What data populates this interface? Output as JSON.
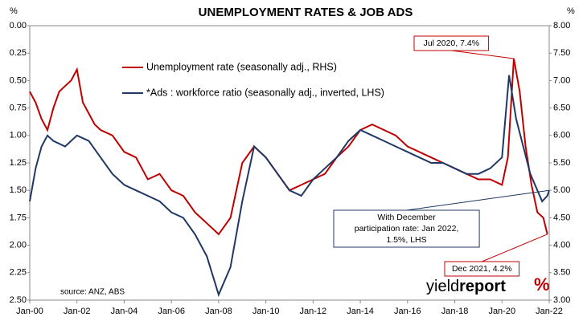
{
  "chart_data": {
    "type": "line",
    "title": "UNEMPLOYMENT RATES & JOB ADS",
    "y_unit": "%",
    "y2_unit": "%",
    "source": "source: ANZ, ABS",
    "logo": {
      "main": "yield",
      "bold": "report"
    },
    "legend": "top-center",
    "yinvert": true,
    "xlim": [
      2000,
      2022
    ],
    "xticks": [
      {
        "value": 2000,
        "label": "Jan-00"
      },
      {
        "value": 2002,
        "label": "Jan-02"
      },
      {
        "value": 2004,
        "label": "Jan-04"
      },
      {
        "value": 2006,
        "label": "Jan-06"
      },
      {
        "value": 2008,
        "label": "Jan-08"
      },
      {
        "value": 2010,
        "label": "Jan-10"
      },
      {
        "value": 2012,
        "label": "Jan-12"
      },
      {
        "value": 2014,
        "label": "Jan-14"
      },
      {
        "value": 2016,
        "label": "Jan-16"
      },
      {
        "value": 2018,
        "label": "Jan-18"
      },
      {
        "value": 2020,
        "label": "Jan-20"
      },
      {
        "value": 2022,
        "label": "Jan-22"
      }
    ],
    "ylim": [
      0,
      2.5
    ],
    "yticks": [
      {
        "value": 0,
        "label": "0.00"
      },
      {
        "value": 0.25,
        "label": "0.25"
      },
      {
        "value": 0.5,
        "label": "0.50"
      },
      {
        "value": 0.75,
        "label": "0.75"
      },
      {
        "value": 1,
        "label": "1.00"
      },
      {
        "value": 1.25,
        "label": "1.25"
      },
      {
        "value": 1.5,
        "label": "1.50"
      },
      {
        "value": 1.75,
        "label": "1.75"
      },
      {
        "value": 2,
        "label": "2.00"
      },
      {
        "value": 2.25,
        "label": "2.25"
      },
      {
        "value": 2.5,
        "label": "2.50"
      }
    ],
    "y2lim": [
      3,
      8
    ],
    "y2ticks": [
      {
        "value": 3,
        "label": "3.00"
      },
      {
        "value": 3.5,
        "label": "3.50"
      },
      {
        "value": 4,
        "label": "4.00"
      },
      {
        "value": 4.5,
        "label": "4.50"
      },
      {
        "value": 5,
        "label": "5.00"
      },
      {
        "value": 5.5,
        "label": "5.50"
      },
      {
        "value": 6,
        "label": "6.00"
      },
      {
        "value": 6.5,
        "label": "6.50"
      },
      {
        "value": 7,
        "label": "7.00"
      },
      {
        "value": 7.5,
        "label": "7.50"
      },
      {
        "value": 8,
        "label": "8.00"
      }
    ],
    "series": [
      {
        "name": "Unemployment rate (seasonally adj., RHS)",
        "color": "#c00000",
        "axis": "y2",
        "x": [
          2000,
          2000.25,
          2000.5,
          2000.75,
          2001,
          2001.25,
          2001.5,
          2001.75,
          2002,
          2002.25,
          2002.5,
          2002.75,
          2003,
          2003.5,
          2004,
          2004.5,
          2005,
          2005.5,
          2006,
          2006.5,
          2007,
          2007.5,
          2008,
          2008.5,
          2009,
          2009.5,
          2010,
          2010.5,
          2011,
          2011.5,
          2012,
          2012.5,
          2013,
          2013.5,
          2014,
          2014.5,
          2015,
          2015.5,
          2016,
          2016.5,
          2017,
          2017.5,
          2018,
          2018.5,
          2019,
          2019.5,
          2020,
          2020.25,
          2020.5,
          2020.75,
          2021,
          2021.25,
          2021.5,
          2021.75,
          2021.92
        ],
        "values": [
          6.8,
          6.6,
          6.3,
          6.1,
          6.5,
          6.8,
          6.9,
          7.0,
          7.2,
          6.6,
          6.4,
          6.2,
          6.1,
          6.0,
          5.7,
          5.6,
          5.2,
          5.3,
          5.0,
          4.9,
          4.6,
          4.4,
          4.2,
          4.5,
          5.5,
          5.8,
          5.6,
          5.3,
          5.0,
          5.1,
          5.2,
          5.3,
          5.6,
          5.8,
          6.1,
          6.2,
          6.1,
          6.0,
          5.8,
          5.7,
          5.6,
          5.5,
          5.4,
          5.3,
          5.2,
          5.2,
          5.1,
          5.6,
          7.4,
          6.8,
          5.8,
          5.1,
          4.6,
          4.5,
          4.2
        ]
      },
      {
        "name": "*Ads : workforce ratio (seasonally adj., inverted, LHS)",
        "color": "#1f3864",
        "axis": "y",
        "x": [
          2000,
          2000.25,
          2000.5,
          2000.75,
          2001,
          2001.5,
          2002,
          2002.5,
          2003,
          2003.5,
          2004,
          2004.5,
          2005,
          2005.5,
          2006,
          2006.5,
          2007,
          2007.5,
          2008,
          2008.5,
          2009,
          2009.5,
          2010,
          2010.5,
          2011,
          2011.5,
          2012,
          2012.5,
          2013,
          2013.5,
          2014,
          2014.5,
          2015,
          2015.5,
          2016,
          2016.5,
          2017,
          2017.5,
          2018,
          2018.5,
          2019,
          2019.5,
          2020,
          2020.3,
          2020.6,
          2020.9,
          2021.2,
          2021.5,
          2021.7,
          2021.92,
          2022
        ],
        "values": [
          1.6,
          1.3,
          1.1,
          1.0,
          1.05,
          1.1,
          1.0,
          1.05,
          1.2,
          1.35,
          1.45,
          1.5,
          1.55,
          1.6,
          1.7,
          1.75,
          1.9,
          2.1,
          2.45,
          2.2,
          1.6,
          1.1,
          1.2,
          1.35,
          1.5,
          1.55,
          1.4,
          1.3,
          1.2,
          1.05,
          0.95,
          1.0,
          1.05,
          1.1,
          1.15,
          1.2,
          1.25,
          1.25,
          1.3,
          1.35,
          1.35,
          1.3,
          1.2,
          0.45,
          0.85,
          1.1,
          1.35,
          1.5,
          1.6,
          1.55,
          1.5
        ]
      }
    ],
    "annotations": [
      {
        "lines": [
          "Jul 2020, 7.4%"
        ],
        "color": "#c00000",
        "series": 0,
        "point": 48
      },
      {
        "lines": [
          "Dec 2021, 4.2%"
        ],
        "color": "#c00000",
        "series": 0,
        "point": 54
      },
      {
        "lines": [
          "With December",
          "participation rate: Jan 2022,",
          "1.5%, LHS"
        ],
        "color": "#1f3864",
        "series": 1,
        "point": 50
      }
    ]
  }
}
